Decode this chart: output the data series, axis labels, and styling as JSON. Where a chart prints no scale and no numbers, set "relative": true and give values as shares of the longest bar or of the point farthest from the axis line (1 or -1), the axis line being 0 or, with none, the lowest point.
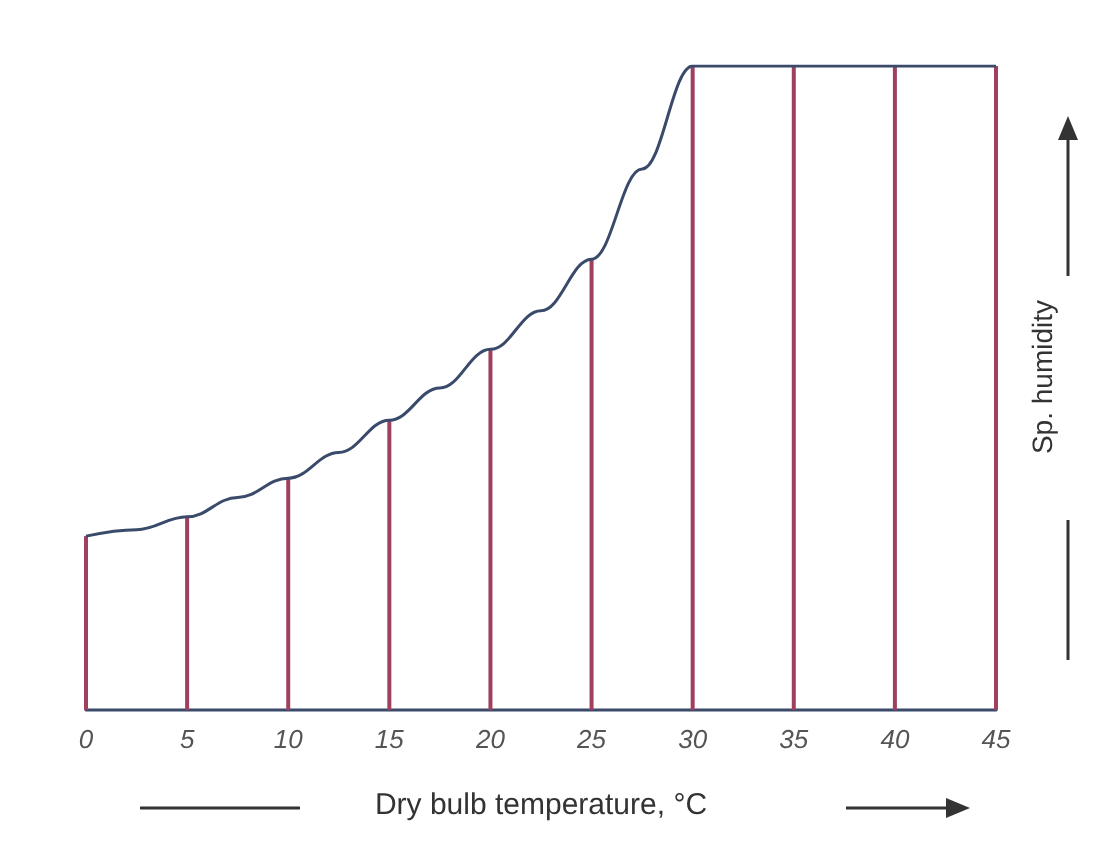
{
  "chart_data": {
    "type": "line",
    "relative": true,
    "xlabel": "Dry bulb temperature, °C",
    "ylabel": "Sp. humidity",
    "x": [
      0,
      5,
      10,
      15,
      20,
      25,
      30,
      35,
      40,
      45
    ],
    "xlim": [
      0,
      45
    ],
    "xticks": [
      0,
      5,
      10,
      15,
      20,
      25,
      30,
      35,
      40,
      45
    ],
    "grid": false,
    "marker": "none",
    "line_style": "solid",
    "series": [
      {
        "color": "#3a4a6a",
        "x": [
          0,
          2.5,
          5,
          7.5,
          10,
          12.5,
          15,
          17.5,
          20,
          22.5,
          25,
          27.5,
          30,
          35,
          40,
          45
        ],
        "values": [
          0.27,
          0.28,
          0.3,
          0.33,
          0.36,
          0.4,
          0.45,
          0.5,
          0.56,
          0.62,
          0.7,
          0.84,
          1,
          1,
          1,
          1
        ]
      },
      {
        "type": "bar",
        "color": "#a0405e",
        "values": [
          0.27,
          0.3,
          0.36,
          0.45,
          0.56,
          0.7,
          1,
          1,
          1,
          1
        ]
      }
    ]
  }
}
